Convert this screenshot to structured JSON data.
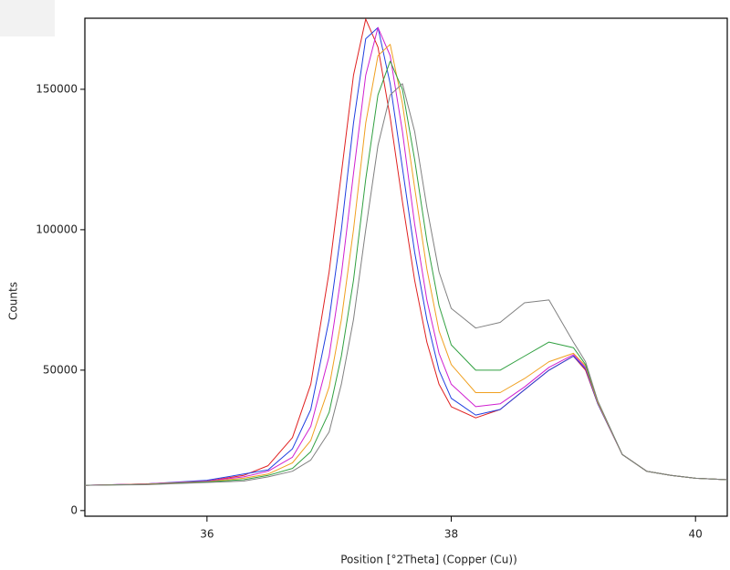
{
  "chart_data": {
    "type": "line",
    "x_label": "Position [°2Theta] (Copper (Cu))",
    "y_label": "Counts",
    "x": [
      35,
      35.5,
      36,
      36.3,
      36.5,
      36.7,
      36.85,
      37,
      37.1,
      37.2,
      37.3,
      37.4,
      37.5,
      37.6,
      37.7,
      37.8,
      37.9,
      38,
      38.2,
      38.4,
      38.6,
      38.8,
      39,
      39.1,
      39.2,
      39.4,
      39.6,
      39.8,
      40,
      40.26
    ],
    "series": [
      {
        "color": "#e02020",
        "values": [
          9000,
          9500,
          10500,
          12500,
          16000,
          26000,
          45000,
          85000,
          120000,
          155000,
          175000,
          165000,
          140000,
          110000,
          82000,
          60000,
          45000,
          37000,
          33000,
          36000,
          43000,
          50000,
          55000,
          50000,
          38000,
          20000,
          14000,
          12500,
          11500,
          11000
        ]
      },
      {
        "color": "#2040e0",
        "values": [
          9000,
          9500,
          10800,
          13000,
          14500,
          22000,
          36000,
          68000,
          100000,
          138000,
          168000,
          172000,
          152000,
          122000,
          92000,
          68000,
          50000,
          40000,
          34000,
          36000,
          43000,
          50000,
          55000,
          50500,
          38000,
          20000,
          14000,
          12500,
          11500,
          11000
        ]
      },
      {
        "color": "#d020d0",
        "values": [
          9000,
          9500,
          10500,
          12000,
          14000,
          19000,
          30000,
          55000,
          84000,
          120000,
          155000,
          172000,
          162000,
          135000,
          102000,
          75000,
          56000,
          45000,
          37000,
          38000,
          44000,
          51000,
          55500,
          51000,
          38500,
          20000,
          14000,
          12500,
          11500,
          11000
        ]
      },
      {
        "color": "#f0a020",
        "values": [
          9000,
          9400,
          10300,
          11500,
          13000,
          17000,
          25000,
          44000,
          68000,
          100000,
          138000,
          162000,
          166000,
          145000,
          115000,
          86000,
          64000,
          52000,
          42000,
          42000,
          47000,
          53000,
          56000,
          51500,
          38500,
          20000,
          14000,
          12500,
          11500,
          11000
        ]
      },
      {
        "color": "#30a040",
        "values": [
          9000,
          9300,
          10200,
          11000,
          12500,
          15000,
          21000,
          35000,
          55000,
          82000,
          118000,
          148000,
          160000,
          150000,
          125000,
          96000,
          73000,
          59000,
          50000,
          50000,
          55000,
          60000,
          58000,
          52000,
          39000,
          20000,
          14000,
          12500,
          11500,
          11000
        ]
      },
      {
        "color": "#808080",
        "values": [
          9000,
          9200,
          10000,
          10500,
          12000,
          14000,
          18000,
          28000,
          45000,
          68000,
          100000,
          130000,
          148000,
          152000,
          135000,
          108000,
          85000,
          72000,
          65000,
          67000,
          74000,
          75000,
          60000,
          53000,
          39000,
          20000,
          14000,
          12500,
          11500,
          11000
        ]
      }
    ],
    "xlim": [
      35,
      40.26
    ],
    "xticks": [
      36,
      38,
      40
    ],
    "ylim": [
      -2000,
      175300
    ],
    "yticks": [
      0,
      50000,
      100000,
      150000
    ]
  }
}
